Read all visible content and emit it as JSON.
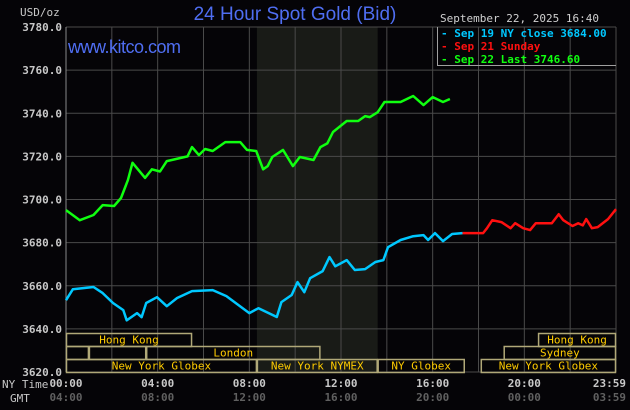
{
  "header": {
    "title": "24 Hour Spot Gold (Bid)",
    "website": "www.kitco.com",
    "unit": "USD/oz",
    "timestamp": "September 22, 2025 16:40"
  },
  "legend": [
    {
      "label": "Sep 19 NY close 3684.00",
      "color": "#00c8ff"
    },
    {
      "label": "Sep 21 Sunday",
      "color": "#ff1010"
    },
    {
      "label": "Sep 22 Last 3746.60",
      "color": "#10ff10"
    }
  ],
  "axis_labels": {
    "ny_time": "NY Time",
    "gmt": "GMT"
  },
  "chart_data": {
    "type": "line",
    "title": "24 Hour Spot Gold (Bid)",
    "ylabel": "USD/oz",
    "ylim": [
      3620,
      3780
    ],
    "xlim": [
      0,
      24
    ],
    "grid": true,
    "legend_position": "top-right",
    "y_ticks": [
      "3780.0",
      "3760.0",
      "3740.0",
      "3720.0",
      "3700.0",
      "3680.0",
      "3660.0",
      "3640.0",
      "3620.0"
    ],
    "x_ticks_ny": [
      "00:00",
      "04:00",
      "08:00",
      "12:00",
      "16:00",
      "20:00",
      "23:59"
    ],
    "x_ticks_gmt": [
      "04:00",
      "08:00",
      "12:00",
      "16:00",
      "20:00",
      "00:00",
      "03:59"
    ],
    "highlight_band_hours": [
      8.33,
      13.6
    ],
    "series": [
      {
        "name": "Sep 19 NY close 3684.00",
        "color": "#00c8ff",
        "x": [
          0,
          0.3,
          1.2,
          1.6,
          2.05,
          2.5,
          2.65,
          3.1,
          3.3,
          3.5,
          3.97,
          4.4,
          4.85,
          5.5,
          6.4,
          7.0,
          8.0,
          8.4,
          9.2,
          9.4,
          9.85,
          10.1,
          10.4,
          10.65,
          11.2,
          11.5,
          11.75,
          12.25,
          12.6,
          13.05,
          13.5,
          13.85,
          14.05,
          14.6,
          15.15,
          15.6,
          15.8,
          16.1,
          16.45,
          16.85,
          17.3
        ],
        "y": [
          3653.3,
          3658.4,
          3659.4,
          3656.6,
          3652,
          3648.7,
          3644,
          3647.3,
          3645.4,
          3652,
          3654.7,
          3650.5,
          3654.3,
          3657.5,
          3658,
          3655.2,
          3647.3,
          3649.6,
          3645.5,
          3652.4,
          3655.7,
          3661.7,
          3657,
          3663.5,
          3666.8,
          3673.3,
          3669,
          3671.9,
          3667.3,
          3667.7,
          3671,
          3671.9,
          3677.9,
          3681.2,
          3683,
          3683.5,
          3681.2,
          3684.4,
          3680.7,
          3684,
          3684.4
        ]
      },
      {
        "name": "Sep 21 Sunday",
        "color": "#ff1010",
        "x": [
          17.3,
          18.2,
          18.37,
          18.6,
          19.0,
          19.4,
          19.6,
          19.95,
          20.25,
          20.5,
          20.8,
          21.2,
          21.5,
          21.7,
          22.1,
          22.35,
          22.55,
          22.7,
          22.95,
          23.2,
          23.65,
          24.0
        ],
        "y": [
          3684.4,
          3684.4,
          3686.7,
          3690.4,
          3689.5,
          3686.7,
          3689,
          3686.7,
          3685.8,
          3689,
          3689,
          3689,
          3693.2,
          3690.4,
          3687.7,
          3689,
          3688,
          3690.9,
          3686.7,
          3687.2,
          3690.9,
          3695.5
        ]
      },
      {
        "name": "Sep 22 Last 3746.60",
        "color": "#10ff10",
        "x": [
          0,
          0.6,
          1.2,
          1.6,
          2.1,
          2.4,
          2.7,
          2.9,
          3.45,
          3.75,
          4.1,
          4.4,
          5.3,
          5.5,
          5.8,
          6.07,
          6.4,
          6.95,
          7.6,
          7.9,
          8.3,
          8.6,
          8.8,
          9.0,
          9.47,
          9.9,
          10.2,
          10.8,
          11.1,
          11.4,
          11.65,
          12.25,
          12.75,
          13.05,
          13.26,
          13.6,
          13.9,
          14.6,
          15.15,
          15.6,
          16.0,
          16.45,
          16.75
        ],
        "y": [
          3695.1,
          3690.4,
          3692.8,
          3697.4,
          3697,
          3700.7,
          3709,
          3717,
          3710,
          3714,
          3713,
          3717.8,
          3720,
          3724.3,
          3720.6,
          3723.4,
          3722.5,
          3726.6,
          3726.6,
          3723,
          3722.5,
          3714,
          3715.5,
          3719.7,
          3723,
          3715.5,
          3719.7,
          3718.3,
          3724.3,
          3726,
          3731.3,
          3736.4,
          3736.4,
          3738.7,
          3738.2,
          3740.5,
          3745.2,
          3745.2,
          3748,
          3743.8,
          3747.5,
          3745.2,
          3746.6
        ]
      }
    ],
    "sessions": [
      {
        "label": "Hong Kong",
        "row": 0,
        "start": 0,
        "end": 5.5
      },
      {
        "label": "Hong Kong",
        "row": 0,
        "start": 20.6,
        "end": 24
      },
      {
        "label": "",
        "row": 1,
        "start": 0,
        "end": 1.0
      },
      {
        "label": "",
        "row": 1,
        "start": 1.0,
        "end": 3.5
      },
      {
        "label": "London",
        "row": 1,
        "start": 3.5,
        "end": 11.1
      },
      {
        "label": "Sydney",
        "row": 1,
        "start": 19.1,
        "end": 24
      },
      {
        "label": "New York Globex",
        "row": 2,
        "start": 0,
        "end": 8.33
      },
      {
        "label": "New York NYMEX",
        "row": 2,
        "start": 8.33,
        "end": 13.6
      },
      {
        "label": "NY Globex",
        "row": 2,
        "start": 13.6,
        "end": 17.4
      },
      {
        "label": "New York Globex",
        "row": 2,
        "start": 18.1,
        "end": 24
      }
    ]
  }
}
